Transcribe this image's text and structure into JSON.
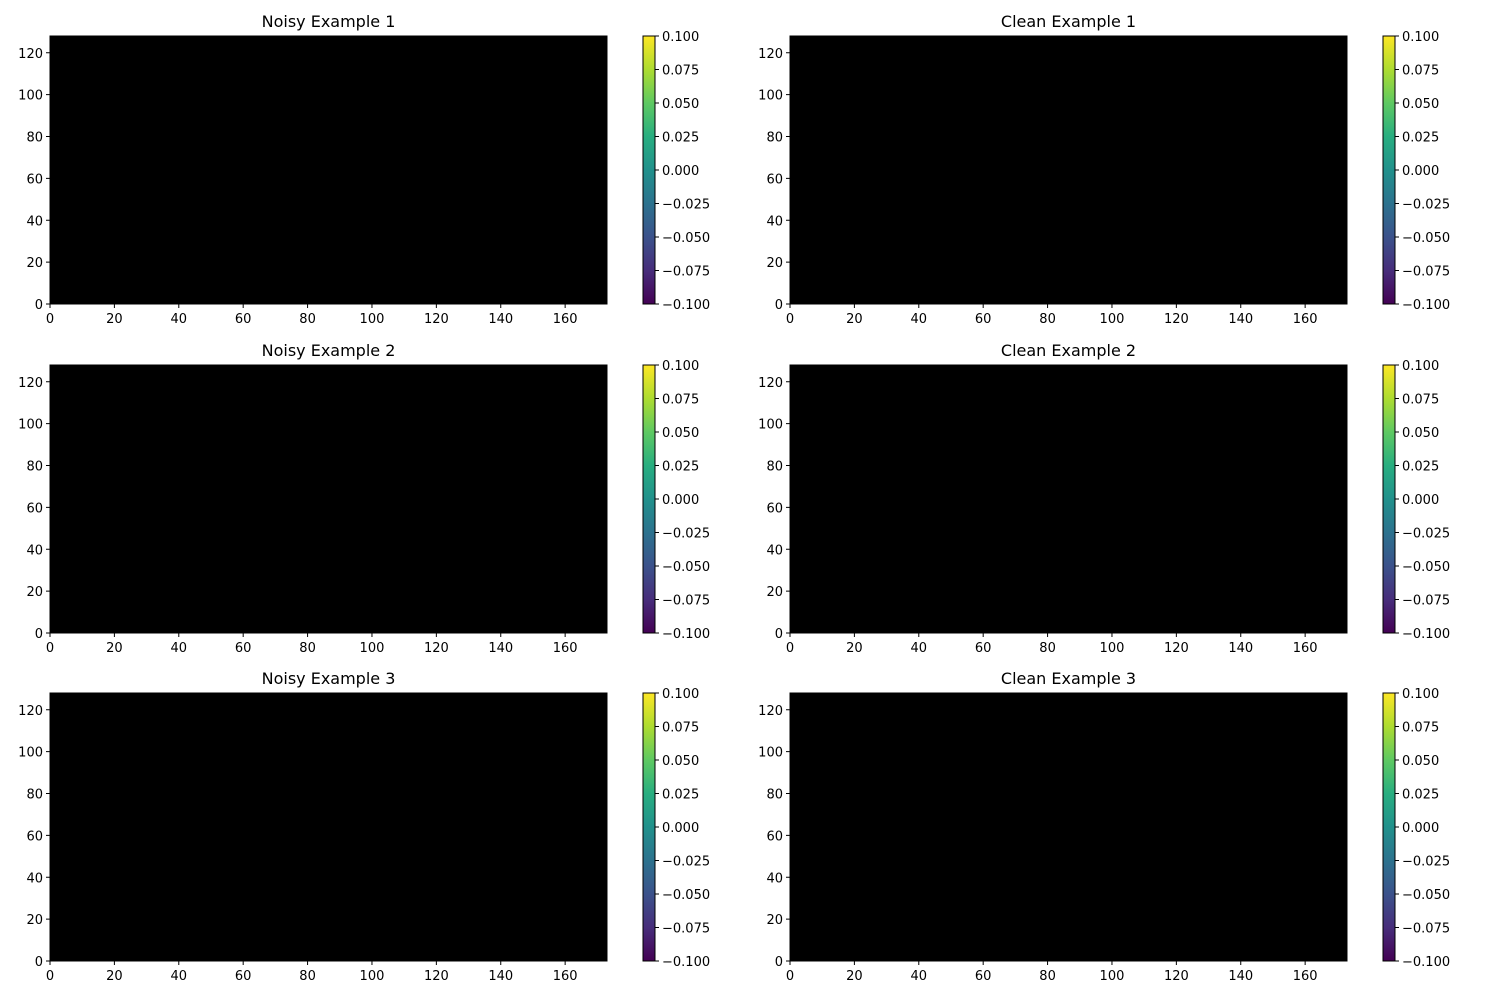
{
  "chart_data": [
    {
      "type": "heatmap",
      "title": "Noisy Example 1",
      "xlabel": "",
      "ylabel": "",
      "xlim": [
        0,
        173
      ],
      "ylim": [
        0,
        128
      ],
      "xticks": [
        "0",
        "20",
        "40",
        "60",
        "80",
        "100",
        "120",
        "140",
        "160"
      ],
      "yticks": [
        "0",
        "20",
        "40",
        "60",
        "80",
        "100",
        "120"
      ],
      "fill_color": "#000000",
      "colorbar": {
        "colormap": "viridis",
        "range": [
          -0.1,
          0.1
        ],
        "ticks": [
          "−0.100",
          "−0.075",
          "−0.050",
          "−0.025",
          "0.000",
          "0.025",
          "0.050",
          "0.075",
          "0.100"
        ]
      }
    },
    {
      "type": "heatmap",
      "title": "Clean Example 1",
      "xlabel": "",
      "ylabel": "",
      "xlim": [
        0,
        173
      ],
      "ylim": [
        0,
        128
      ],
      "xticks": [
        "0",
        "20",
        "40",
        "60",
        "80",
        "100",
        "120",
        "140",
        "160"
      ],
      "yticks": [
        "0",
        "20",
        "40",
        "60",
        "80",
        "100",
        "120"
      ],
      "fill_color": "#000000",
      "colorbar": {
        "colormap": "viridis",
        "range": [
          -0.1,
          0.1
        ],
        "ticks": [
          "−0.100",
          "−0.075",
          "−0.050",
          "−0.025",
          "0.000",
          "0.025",
          "0.050",
          "0.075",
          "0.100"
        ]
      }
    },
    {
      "type": "heatmap",
      "title": "Noisy Example 2",
      "xlabel": "",
      "ylabel": "",
      "xlim": [
        0,
        173
      ],
      "ylim": [
        0,
        128
      ],
      "xticks": [
        "0",
        "20",
        "40",
        "60",
        "80",
        "100",
        "120",
        "140",
        "160"
      ],
      "yticks": [
        "0",
        "20",
        "40",
        "60",
        "80",
        "100",
        "120"
      ],
      "fill_color": "#000000",
      "colorbar": {
        "colormap": "viridis",
        "range": [
          -0.1,
          0.1
        ],
        "ticks": [
          "−0.100",
          "−0.075",
          "−0.050",
          "−0.025",
          "0.000",
          "0.025",
          "0.050",
          "0.075",
          "0.100"
        ]
      }
    },
    {
      "type": "heatmap",
      "title": "Clean Example 2",
      "xlabel": "",
      "ylabel": "",
      "xlim": [
        0,
        173
      ],
      "ylim": [
        0,
        128
      ],
      "xticks": [
        "0",
        "20",
        "40",
        "60",
        "80",
        "100",
        "120",
        "140",
        "160"
      ],
      "yticks": [
        "0",
        "20",
        "40",
        "60",
        "80",
        "100",
        "120"
      ],
      "fill_color": "#000000",
      "colorbar": {
        "colormap": "viridis",
        "range": [
          -0.1,
          0.1
        ],
        "ticks": [
          "−0.100",
          "−0.075",
          "−0.050",
          "−0.025",
          "0.000",
          "0.025",
          "0.050",
          "0.075",
          "0.100"
        ]
      }
    },
    {
      "type": "heatmap",
      "title": "Noisy Example 3",
      "xlabel": "",
      "ylabel": "",
      "xlim": [
        0,
        173
      ],
      "ylim": [
        0,
        128
      ],
      "xticks": [
        "0",
        "20",
        "40",
        "60",
        "80",
        "100",
        "120",
        "140",
        "160"
      ],
      "yticks": [
        "0",
        "20",
        "40",
        "60",
        "80",
        "100",
        "120"
      ],
      "fill_color": "#000000",
      "colorbar": {
        "colormap": "viridis",
        "range": [
          -0.1,
          0.1
        ],
        "ticks": [
          "−0.100",
          "−0.075",
          "−0.050",
          "−0.025",
          "0.000",
          "0.025",
          "0.050",
          "0.075",
          "0.100"
        ]
      }
    },
    {
      "type": "heatmap",
      "title": "Clean Example 3",
      "xlabel": "",
      "ylabel": "",
      "xlim": [
        0,
        173
      ],
      "ylim": [
        0,
        128
      ],
      "xticks": [
        "0",
        "20",
        "40",
        "60",
        "80",
        "100",
        "120",
        "140",
        "160"
      ],
      "yticks": [
        "0",
        "20",
        "40",
        "60",
        "80",
        "100",
        "120"
      ],
      "fill_color": "#000000",
      "colorbar": {
        "colormap": "viridis",
        "range": [
          -0.1,
          0.1
        ],
        "ticks": [
          "−0.100",
          "−0.075",
          "−0.050",
          "−0.025",
          "0.000",
          "0.025",
          "0.050",
          "0.075",
          "0.100"
        ]
      }
    }
  ]
}
